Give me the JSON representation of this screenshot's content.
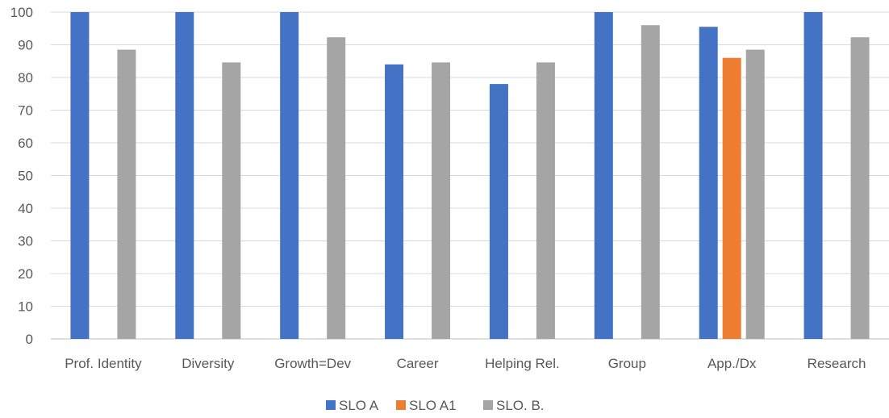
{
  "chart_data": {
    "type": "bar",
    "title": "",
    "xlabel": "",
    "ylabel": "",
    "ylim": [
      0,
      100
    ],
    "yticks": [
      0,
      10,
      20,
      30,
      40,
      50,
      60,
      70,
      80,
      90,
      100
    ],
    "grid": true,
    "legend_position": "bottom",
    "categories": [
      "Prof. Identity",
      "Diversity",
      "Growth=Dev",
      "Career",
      "Helping Rel.",
      "Group",
      "App./Dx",
      "Research"
    ],
    "series": [
      {
        "name": "SLO A",
        "color": "#4472C4",
        "values": [
          100,
          100,
          100,
          84,
          78,
          100,
          95.5,
          100
        ]
      },
      {
        "name": "SLO A1",
        "color": "#ED7D31",
        "values": [
          null,
          null,
          null,
          null,
          null,
          null,
          86,
          null
        ]
      },
      {
        "name": "SLO. B.",
        "color": "#A5A5A5",
        "values": [
          88.5,
          84.6,
          92.3,
          84.6,
          84.6,
          96,
          88.5,
          92.3
        ]
      }
    ]
  }
}
